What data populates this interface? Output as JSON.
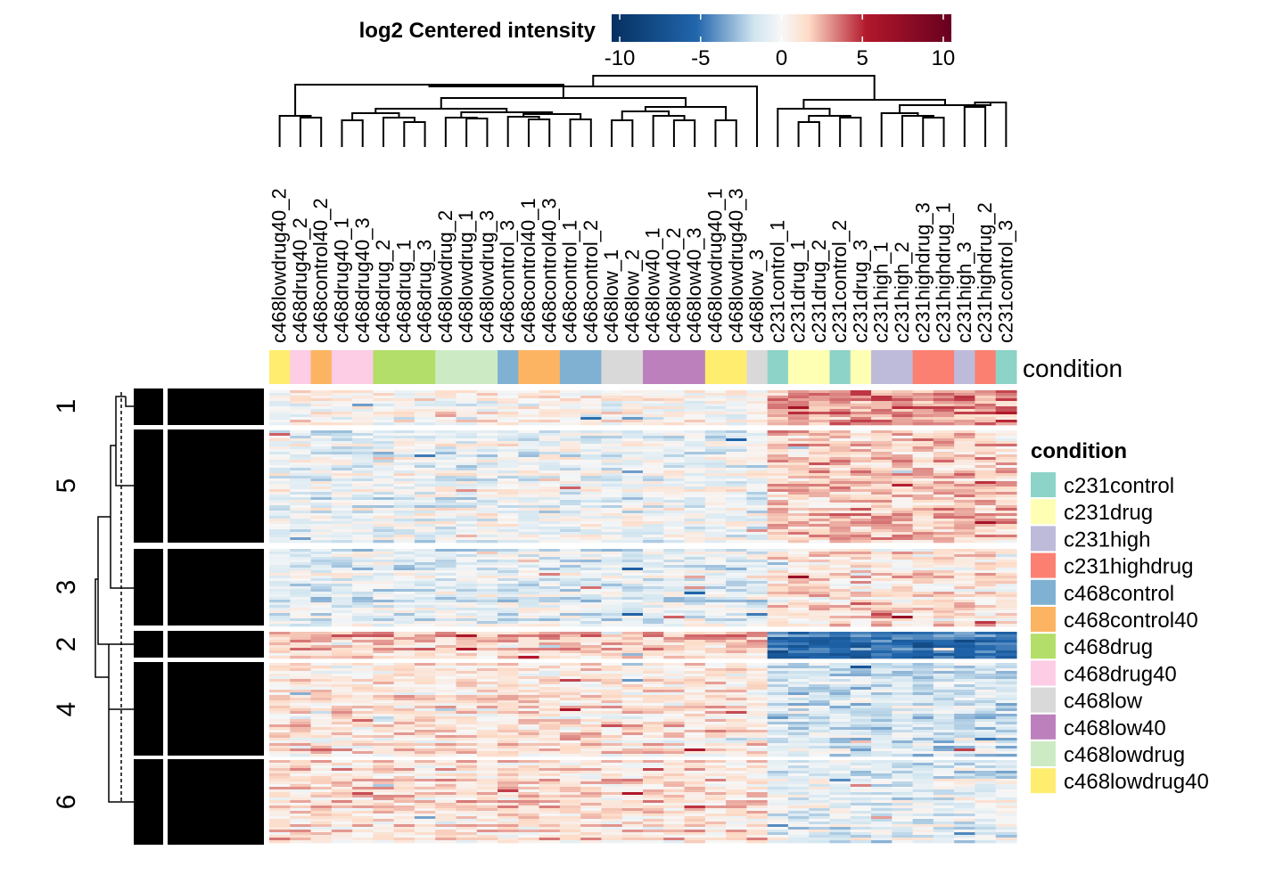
{
  "chart_data": {
    "type": "heatmap",
    "title": "",
    "color_legend": {
      "title": "log2 Centered intensity",
      "ticks": [
        -10,
        -5,
        0,
        5,
        10
      ],
      "range": [
        -10.5,
        10.5
      ],
      "colors": {
        "low": "#053061",
        "mid_low": "#2166ac",
        "light_low": "#d1e5f0",
        "mid": "#f7f7f7",
        "light_high": "#fddbc7",
        "mid_high": "#b2182b",
        "high": "#67001f"
      }
    },
    "columns": [
      "c468lowdrug40_2",
      "c468drug40_2",
      "c468control40_2",
      "c468drug40_1",
      "c468drug40_3",
      "c468drug_2",
      "c468drug_1",
      "c468drug_3",
      "c468lowdrug_2",
      "c468lowdrug_1",
      "c468lowdrug_3",
      "c468control_3",
      "c468control40_1",
      "c468control40_3",
      "c468control_1",
      "c468control_2",
      "c468low_1",
      "c468low_2",
      "c468low40_1",
      "c468low40_2",
      "c468low40_3",
      "c468lowdrug40_1",
      "c468lowdrug40_3",
      "c468low_3",
      "c231control_1",
      "c231drug_1",
      "c231drug_2",
      "c231control_2",
      "c231drug_3",
      "c231high_1",
      "c231high_2",
      "c231highdrug_3",
      "c231highdrug_1",
      "c231high_3",
      "c231highdrug_2",
      "c231control_3"
    ],
    "column_conditions": [
      "c468lowdrug40",
      "c468drug40",
      "c468control40",
      "c468drug40",
      "c468drug40",
      "c468drug",
      "c468drug",
      "c468drug",
      "c468lowdrug",
      "c468lowdrug",
      "c468lowdrug",
      "c468control",
      "c468control40",
      "c468control40",
      "c468control",
      "c468control",
      "c468low",
      "c468low",
      "c468low40",
      "c468low40",
      "c468low40",
      "c468lowdrug40",
      "c468lowdrug40",
      "c468low",
      "c231control",
      "c231drug",
      "c231drug",
      "c231control",
      "c231drug",
      "c231high",
      "c231high",
      "c231highdrug",
      "c231highdrug",
      "c231high",
      "c231highdrug",
      "c231control"
    ],
    "annotation_name": "condition",
    "condition_legend": {
      "title": "condition",
      "items": [
        {
          "label": "c231control",
          "color": "#8dd3c7"
        },
        {
          "label": "c231drug",
          "color": "#ffffb3"
        },
        {
          "label": "c231high",
          "color": "#bebada"
        },
        {
          "label": "c231highdrug",
          "color": "#fb8072"
        },
        {
          "label": "c468control",
          "color": "#80b1d3"
        },
        {
          "label": "c468control40",
          "color": "#fdb462"
        },
        {
          "label": "c468drug",
          "color": "#b3de69"
        },
        {
          "label": "c468drug40",
          "color": "#fccde5"
        },
        {
          "label": "c468low",
          "color": "#d9d9d9"
        },
        {
          "label": "c468low40",
          "color": "#bc80bd"
        },
        {
          "label": "c468lowdrug",
          "color": "#ccebc5"
        },
        {
          "label": "c468lowdrug40",
          "color": "#ffed6f"
        }
      ]
    },
    "row_clusters": [
      {
        "label": "1",
        "c468_level": 0.2,
        "c231_level": 3.0
      },
      {
        "label": "5",
        "c468_level": -0.4,
        "c231_level": 2.0
      },
      {
        "label": "3",
        "c468_level": -0.9,
        "c231_level": 1.2
      },
      {
        "label": "2",
        "c468_level": 2.0,
        "c231_level": -5.0
      },
      {
        "label": "4",
        "c468_level": 1.0,
        "c231_level": -1.5
      },
      {
        "label": "6",
        "c468_level": 1.2,
        "c231_level": -0.8
      }
    ]
  }
}
